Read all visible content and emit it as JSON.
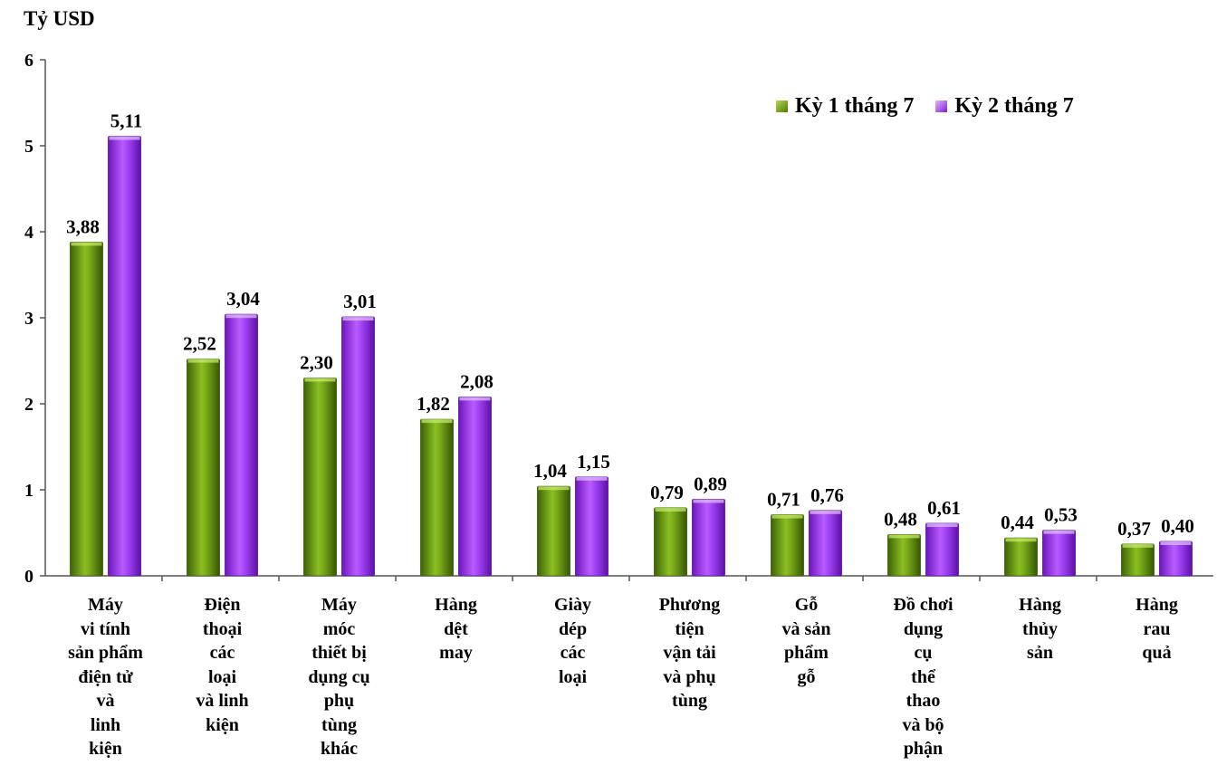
{
  "chart_data": {
    "type": "bar",
    "ylabel": "Tỷ USD",
    "ylim": [
      0,
      6
    ],
    "yticks": [
      "0",
      "1",
      "2",
      "3",
      "4",
      "5",
      "6"
    ],
    "grid": false,
    "legend_position": "top-right",
    "categories": [
      "Máy\nvi tính\nsản phẩm\nđiện tử\nvà\nlinh\nkiện",
      "Điện\nthoại\ncác\nloại\nvà linh\nkiện",
      "Máy\nmóc\nthiết bị\ndụng cụ\nphụ\ntùng\nkhác",
      "Hàng\ndệt\nmay",
      "Giày\ndép\ncác\nloại",
      "Phương\ntiện\nvận tải\nvà phụ\ntùng",
      "Gỗ\nvà sản\nphẩm\ngỗ",
      "Đồ chơi\ndụng\ncụ\nthể\nthao\nvà bộ\nphận",
      "Hàng\nthủy\nsản",
      "Hàng\nrau\nquả"
    ],
    "series": [
      {
        "name": "Kỳ 1 tháng 7",
        "color": "#5b8a0f",
        "values": [
          3.88,
          2.52,
          2.3,
          1.82,
          1.04,
          0.79,
          0.71,
          0.48,
          0.44,
          0.37
        ],
        "labels": [
          "3,88",
          "2,52",
          "2,30",
          "1,82",
          "1,04",
          "0,79",
          "0,71",
          "0,48",
          "0,44",
          "0,37"
        ]
      },
      {
        "name": "Kỳ 2 tháng 7",
        "color": "#9b30ef",
        "values": [
          5.11,
          3.04,
          3.01,
          2.08,
          1.15,
          0.89,
          0.76,
          0.61,
          0.53,
          0.4
        ],
        "labels": [
          "5,11",
          "3,04",
          "3,01",
          "2,08",
          "1,15",
          "0,89",
          "0,76",
          "0,61",
          "0,53",
          "0,40"
        ]
      }
    ]
  }
}
